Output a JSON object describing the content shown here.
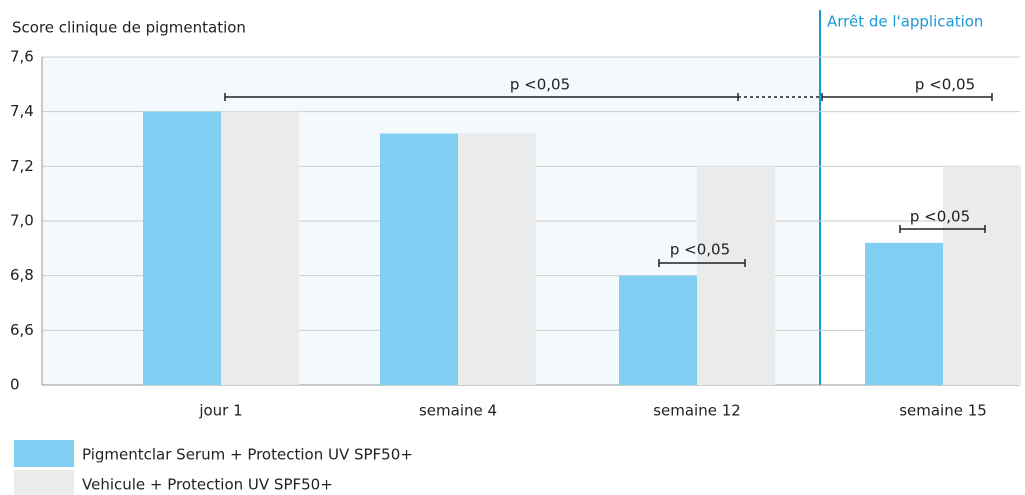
{
  "chart_data": {
    "type": "bar",
    "y_label": "Score clinique de pigmentation",
    "categories": [
      "jour 1",
      "semaine 4",
      "semaine 12",
      "semaine 15"
    ],
    "series": [
      {
        "name": "Pigmentclar Serum + Protection UV SPF50+",
        "color": "#80cff3",
        "values": [
          7.4,
          7.32,
          6.8,
          6.92
        ]
      },
      {
        "name": "Vehicule + Protection UV SPF50+",
        "color": "#ebebeb",
        "values": [
          7.4,
          7.32,
          7.2,
          7.2
        ]
      }
    ],
    "ylim": [
      0,
      7.6
    ],
    "yticks": [
      0,
      {
        "value": 6.6,
        "label": "6,6"
      },
      {
        "value": 6.8,
        "label": "6,8"
      },
      {
        "value": 7.0,
        "label": "7,0"
      },
      {
        "value": 7.2,
        "label": "7,2"
      },
      {
        "value": 7.4,
        "label": "7,4"
      },
      {
        "value": 7.6,
        "label": "7,6"
      }
    ],
    "grid": true,
    "marker_label": "Arrêt de l'application",
    "annotations": [
      {
        "text": "p <0,05"
      },
      {
        "text": "p <0,05"
      },
      {
        "text": "p <0,05"
      },
      {
        "text": "p <0,05"
      }
    ]
  }
}
